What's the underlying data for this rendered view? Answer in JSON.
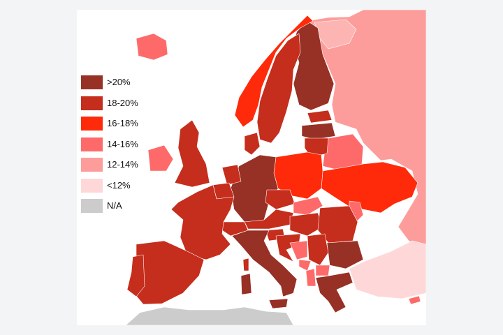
{
  "legend": {
    "items": [
      {
        "label": ">20%",
        "color": "#973025"
      },
      {
        "label": "18-20%",
        "color": "#c52d1c"
      },
      {
        "label": "16-18%",
        "color": "#ff2a0a"
      },
      {
        "label": "14-16%",
        "color": "#fe6a6a"
      },
      {
        "label": "12-14%",
        "color": "#fd9d9b"
      },
      {
        "label": "<12%",
        "color": "#fed8d8"
      },
      {
        "label": "N/A",
        "color": "#cccccc"
      }
    ]
  },
  "regions": [
    {
      "name": "Iceland",
      "category": "14-16%"
    },
    {
      "name": "Ireland",
      "category": "14-16%"
    },
    {
      "name": "United Kingdom",
      "category": "18-20%"
    },
    {
      "name": "Portugal",
      "category": "18-20%"
    },
    {
      "name": "Spain",
      "category": "18-20%"
    },
    {
      "name": "France",
      "category": "18-20%"
    },
    {
      "name": "Belgium",
      "category": "18-20%"
    },
    {
      "name": "Netherlands",
      "category": "18-20%"
    },
    {
      "name": "Germany",
      "category": ">20%"
    },
    {
      "name": "Denmark",
      "category": "18-20%"
    },
    {
      "name": "Norway",
      "category": "16-18%"
    },
    {
      "name": "Sweden",
      "category": "18-20%"
    },
    {
      "name": "Finland",
      "category": ">20%"
    },
    {
      "name": "Estonia",
      "category": "18-20%"
    },
    {
      "name": "Latvia",
      "category": ">20%"
    },
    {
      "name": "Lithuania",
      "category": "18-20%"
    },
    {
      "name": "Poland",
      "category": "16-18%"
    },
    {
      "name": "Belarus",
      "category": "14-16%"
    },
    {
      "name": "Ukraine",
      "category": "16-18%"
    },
    {
      "name": "Russia",
      "category": "12-14%"
    },
    {
      "name": "Czech Republic",
      "category": "18-20%"
    },
    {
      "name": "Slovakia",
      "category": "14-16%"
    },
    {
      "name": "Austria",
      "category": "18-20%"
    },
    {
      "name": "Switzerland",
      "category": "18-20%"
    },
    {
      "name": "Italy",
      "category": ">20%"
    },
    {
      "name": "Slovenia",
      "category": "18-20%"
    },
    {
      "name": "Hungary",
      "category": "18-20%"
    },
    {
      "name": "Croatia",
      "category": "18-20%"
    },
    {
      "name": "Bosnia and Herzegovina",
      "category": "14-16%"
    },
    {
      "name": "Serbia",
      "category": "18-20%"
    },
    {
      "name": "Montenegro",
      "category": "14-16%"
    },
    {
      "name": "Albania",
      "category": "14-16%"
    },
    {
      "name": "North Macedonia",
      "category": "14-16%"
    },
    {
      "name": "Romania",
      "category": "18-20%"
    },
    {
      "name": "Moldova",
      "category": "14-16%"
    },
    {
      "name": "Bulgaria",
      "category": ">20%"
    },
    {
      "name": "Greece",
      "category": ">20%"
    },
    {
      "name": "Turkey",
      "category": "<12%"
    },
    {
      "name": "Cyprus",
      "category": "14-16%"
    },
    {
      "name": "Corsica",
      "category": "18-20%"
    },
    {
      "name": "Sardinia",
      "category": ">20%"
    },
    {
      "name": "Sicily",
      "category": ">20%"
    },
    {
      "name": "North Africa",
      "category": "N/A"
    }
  ]
}
